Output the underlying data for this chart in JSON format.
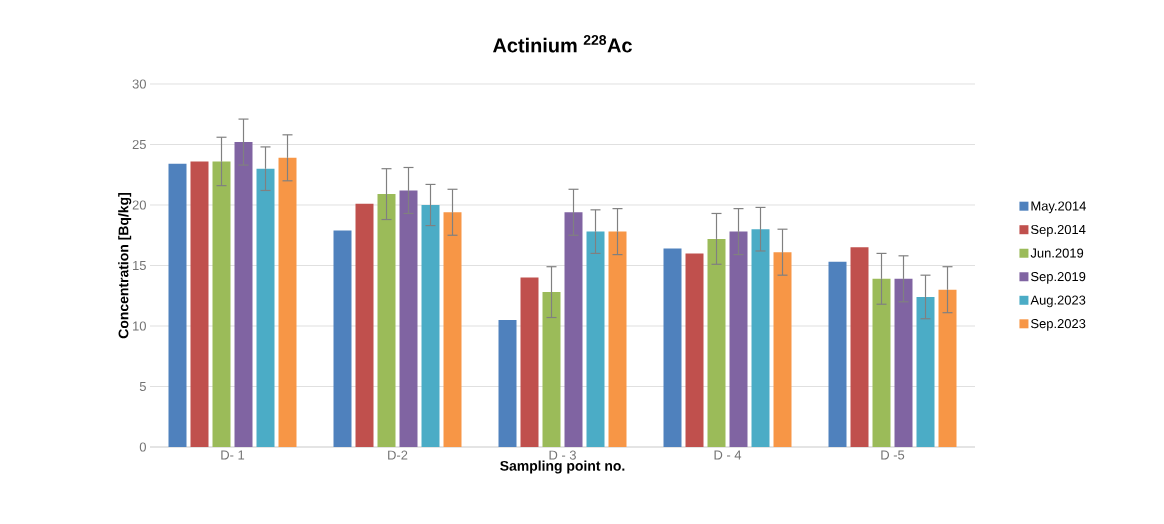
{
  "chart_data": {
    "type": "bar",
    "title": "Actinium $^{228}$Ac",
    "xlabel": "Sampling point no.",
    "ylabel": "Concentration  [Bq/kg]",
    "categories": [
      "D- 1",
      "D-2",
      "D - 3",
      "D - 4",
      "D -5"
    ],
    "series": [
      {
        "name": "May.2014",
        "color": "#4f81bd",
        "values": [
          23.4,
          17.9,
          10.5,
          16.4,
          15.3
        ]
      },
      {
        "name": "Sep.2014",
        "color": "#c0504d",
        "values": [
          23.6,
          20.1,
          14.0,
          16.0,
          16.5
        ]
      },
      {
        "name": "Jun.2019",
        "color": "#9bbb59",
        "values": [
          23.6,
          20.9,
          12.8,
          17.2,
          13.9
        ],
        "errors": [
          2.0,
          2.1,
          2.1,
          2.1,
          2.1
        ]
      },
      {
        "name": "Sep.2019",
        "color": "#8064a2",
        "values": [
          25.2,
          21.2,
          19.4,
          17.8,
          13.9
        ],
        "errors": [
          1.9,
          1.9,
          1.9,
          1.9,
          1.9
        ]
      },
      {
        "name": "Aug.2023",
        "color": "#4bacc6",
        "values": [
          23.0,
          20.0,
          17.8,
          18.0,
          12.4
        ],
        "errors": [
          1.8,
          1.7,
          1.8,
          1.8,
          1.8
        ]
      },
      {
        "name": "Sep.2023",
        "color": "#f79646",
        "values": [
          23.9,
          19.4,
          17.8,
          16.1,
          13.0
        ],
        "errors": [
          1.9,
          1.9,
          1.9,
          1.9,
          1.9
        ]
      }
    ],
    "ylim": [
      0,
      30
    ],
    "yticks": [
      0,
      5,
      10,
      15,
      20,
      25,
      30
    ],
    "grid": "y",
    "legend": "right"
  }
}
